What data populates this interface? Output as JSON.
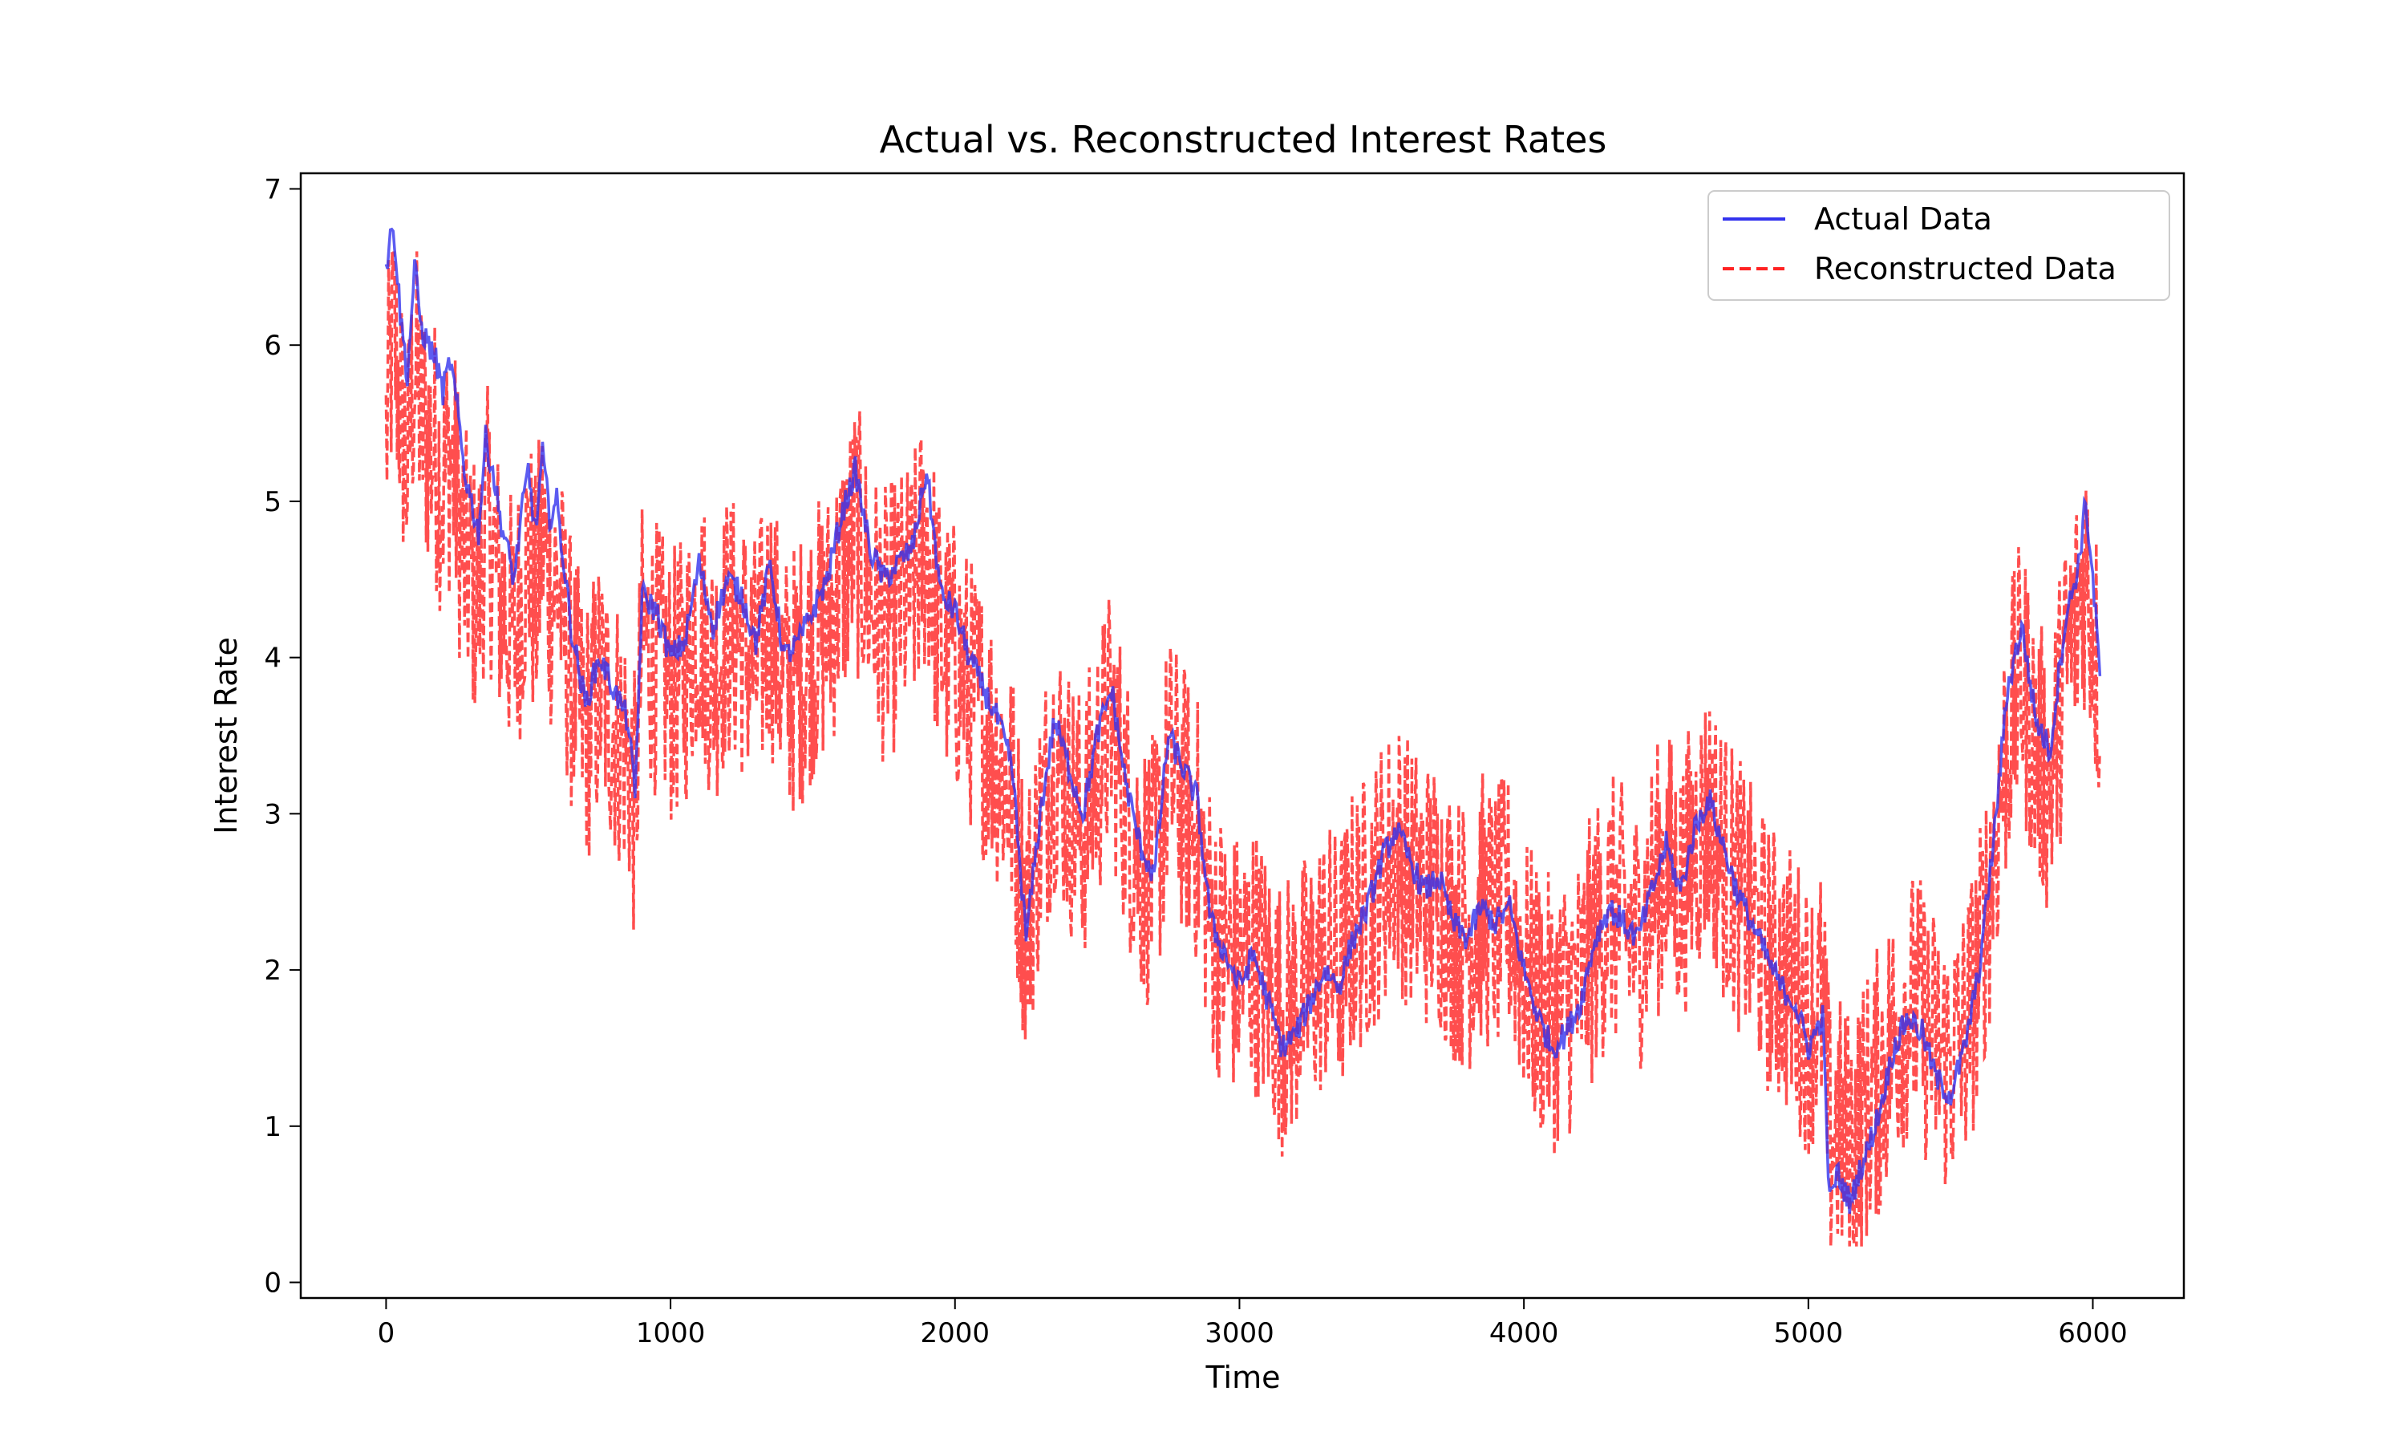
{
  "chart_data": {
    "type": "line",
    "title": "Actual vs. Reconstructed Interest Rates",
    "xlabel": "Time",
    "ylabel": "Interest Rate",
    "xlim": [
      -300,
      6320
    ],
    "ylim": [
      -0.1,
      7.1
    ],
    "xticks": [
      0,
      1000,
      2000,
      3000,
      4000,
      5000,
      6000
    ],
    "xtick_labels": [
      "0",
      "1000",
      "2000",
      "3000",
      "4000",
      "5000",
      "6000"
    ],
    "yticks": [
      0,
      1,
      2,
      3,
      4,
      5,
      6,
      7
    ],
    "ytick_labels": [
      "0",
      "1",
      "2",
      "3",
      "4",
      "5",
      "6",
      "7"
    ],
    "grid": false,
    "legend_position": "top-right",
    "series": [
      {
        "name": "Actual Data",
        "color": "#3333ee",
        "style": "solid",
        "x": [
          0,
          25,
          50,
          75,
          100,
          125,
          150,
          175,
          200,
          225,
          250,
          275,
          300,
          325,
          350,
          375,
          400,
          425,
          450,
          475,
          500,
          525,
          550,
          575,
          600,
          625,
          650,
          700,
          750,
          800,
          850,
          875,
          900,
          950,
          1000,
          1050,
          1100,
          1150,
          1200,
          1250,
          1300,
          1350,
          1400,
          1450,
          1500,
          1550,
          1600,
          1650,
          1700,
          1750,
          1800,
          1850,
          1900,
          1950,
          2000,
          2050,
          2100,
          2150,
          2200,
          2250,
          2300,
          2350,
          2400,
          2450,
          2500,
          2550,
          2600,
          2650,
          2700,
          2750,
          2800,
          2850,
          2900,
          2950,
          3000,
          3050,
          3100,
          3150,
          3200,
          3250,
          3300,
          3350,
          3400,
          3450,
          3500,
          3550,
          3600,
          3650,
          3700,
          3750,
          3800,
          3850,
          3900,
          3950,
          4000,
          4050,
          4100,
          4150,
          4200,
          4250,
          4300,
          4350,
          4400,
          4450,
          4500,
          4550,
          4600,
          4650,
          4700,
          4750,
          4800,
          4850,
          4900,
          4950,
          5000,
          5050,
          5075,
          5100,
          5125,
          5150,
          5175,
          5200,
          5250,
          5300,
          5350,
          5400,
          5450,
          5500,
          5550,
          5600,
          5650,
          5700,
          5750,
          5800,
          5850,
          5900,
          5950,
          5975,
          6000,
          6025
        ],
        "y": [
          6.5,
          6.8,
          6.2,
          5.8,
          6.5,
          6.1,
          6.0,
          5.9,
          5.7,
          5.9,
          5.6,
          5.2,
          5.0,
          4.8,
          5.4,
          5.2,
          4.9,
          4.7,
          4.5,
          4.9,
          5.2,
          4.8,
          5.3,
          4.9,
          5.0,
          4.6,
          4.2,
          3.7,
          4.0,
          3.8,
          3.6,
          3.1,
          4.4,
          4.3,
          4.0,
          4.1,
          4.6,
          4.2,
          4.5,
          4.4,
          4.1,
          4.6,
          4.0,
          4.1,
          4.3,
          4.5,
          4.9,
          5.2,
          4.7,
          4.5,
          4.6,
          4.7,
          5.2,
          4.4,
          4.3,
          4.0,
          3.8,
          3.6,
          3.3,
          2.2,
          3.0,
          3.6,
          3.3,
          3.0,
          3.5,
          3.8,
          3.2,
          2.8,
          2.6,
          3.5,
          3.3,
          3.1,
          2.3,
          2.1,
          1.9,
          2.1,
          1.8,
          1.5,
          1.6,
          1.8,
          2.0,
          1.9,
          2.2,
          2.4,
          2.7,
          2.9,
          2.7,
          2.5,
          2.6,
          2.3,
          2.2,
          2.4,
          2.3,
          2.4,
          2.0,
          1.7,
          1.5,
          1.6,
          1.8,
          2.2,
          2.4,
          2.3,
          2.2,
          2.5,
          2.8,
          2.5,
          2.9,
          3.1,
          2.8,
          2.5,
          2.3,
          2.1,
          1.9,
          1.8,
          1.5,
          1.7,
          0.5,
          0.7,
          0.6,
          0.5,
          0.7,
          0.8,
          1.1,
          1.5,
          1.7,
          1.6,
          1.3,
          1.2,
          1.5,
          2.0,
          2.8,
          3.8,
          4.2,
          3.6,
          3.4,
          4.2,
          4.6,
          5.0,
          4.5,
          3.9
        ]
      },
      {
        "name": "Reconstructed Data",
        "color": "#ff2222",
        "style": "dashed",
        "x": [
          0,
          25,
          50,
          75,
          100,
          125,
          150,
          175,
          200,
          225,
          250,
          275,
          300,
          325,
          350,
          375,
          400,
          425,
          450,
          475,
          500,
          525,
          550,
          575,
          600,
          625,
          650,
          700,
          750,
          800,
          850,
          875,
          900,
          950,
          1000,
          1050,
          1100,
          1150,
          1200,
          1250,
          1300,
          1350,
          1400,
          1450,
          1500,
          1550,
          1600,
          1650,
          1700,
          1750,
          1800,
          1850,
          1900,
          1950,
          2000,
          2050,
          2100,
          2150,
          2200,
          2250,
          2300,
          2350,
          2400,
          2450,
          2500,
          2550,
          2600,
          2650,
          2700,
          2750,
          2800,
          2850,
          2900,
          2950,
          3000,
          3050,
          3100,
          3150,
          3200,
          3250,
          3300,
          3350,
          3400,
          3450,
          3500,
          3550,
          3600,
          3650,
          3700,
          3750,
          3800,
          3850,
          3900,
          3950,
          4000,
          4050,
          4100,
          4150,
          4200,
          4250,
          4300,
          4350,
          4400,
          4450,
          4500,
          4550,
          4600,
          4650,
          4700,
          4750,
          4800,
          4850,
          4900,
          4950,
          5000,
          5050,
          5075,
          5100,
          5125,
          5150,
          5175,
          5200,
          5250,
          5300,
          5350,
          5400,
          5450,
          5500,
          5550,
          5600,
          5650,
          5700,
          5750,
          5800,
          5850,
          5900,
          5950,
          5975,
          6000,
          6025
        ],
        "y": [
          5.4,
          6.1,
          5.6,
          5.2,
          5.9,
          5.5,
          5.4,
          5.3,
          5.1,
          5.3,
          5.0,
          4.6,
          4.5,
          4.4,
          4.9,
          4.7,
          4.4,
          4.3,
          4.1,
          4.4,
          4.7,
          4.3,
          4.8,
          4.4,
          4.5,
          4.2,
          3.9,
          3.5,
          3.8,
          3.6,
          3.4,
          3.0,
          4.1,
          4.0,
          3.8,
          3.9,
          4.3,
          3.9,
          4.2,
          4.1,
          3.9,
          4.3,
          3.8,
          3.9,
          4.1,
          4.2,
          4.5,
          4.8,
          4.4,
          4.2,
          4.3,
          4.4,
          4.8,
          4.1,
          4.0,
          3.8,
          3.6,
          3.4,
          3.1,
          2.3,
          2.9,
          3.4,
          3.1,
          2.9,
          3.3,
          3.6,
          3.1,
          2.7,
          2.6,
          3.3,
          3.1,
          2.9,
          2.3,
          2.1,
          2.0,
          2.1,
          1.9,
          1.7,
          1.8,
          1.9,
          2.1,
          2.0,
          2.3,
          2.4,
          2.6,
          2.8,
          2.6,
          2.5,
          2.5,
          2.3,
          2.2,
          2.4,
          2.3,
          2.4,
          2.0,
          1.8,
          1.7,
          1.8,
          1.9,
          2.2,
          2.4,
          2.3,
          2.2,
          2.5,
          2.7,
          2.5,
          2.8,
          3.0,
          2.7,
          2.5,
          2.3,
          2.1,
          2.0,
          1.9,
          1.7,
          1.8,
          0.9,
          1.0,
          0.9,
          0.9,
          1.0,
          1.1,
          1.3,
          1.6,
          1.8,
          1.7,
          1.5,
          1.4,
          1.6,
          2.0,
          2.7,
          3.5,
          3.9,
          3.4,
          3.2,
          3.9,
          4.3,
          4.6,
          4.2,
          3.8
        ],
        "noise_amplitude": 0.9,
        "max": 6.6,
        "min": 0.23
      }
    ]
  }
}
